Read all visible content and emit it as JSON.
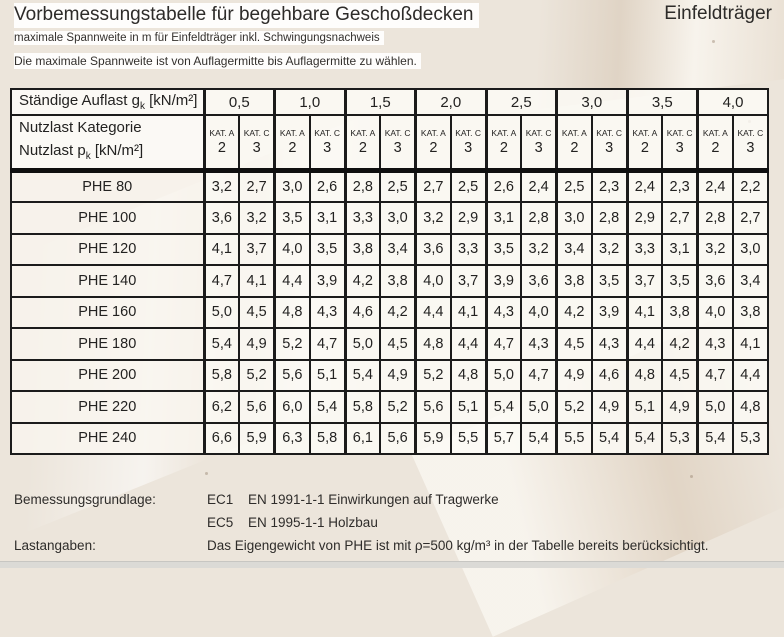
{
  "page": {
    "title": "Vorbemessungstabelle für begehbare Geschoßdecken",
    "title_right": "Einfeldträger",
    "subtitle1": "maximale Spannweite in m für Einfeldträger inkl. Schwingungsnachweis",
    "subtitle2": "Die maximale Spannweite ist von Auflagermitte bis Auflagermitte zu wählen."
  },
  "table": {
    "header": {
      "row1_label_prefix": "Ständige Auflast g",
      "row1_label_sub": "k",
      "row1_label_unit": " [kN/m²]",
      "row2_line1": "Nutzlast Kategorie",
      "row2_line2_prefix": "Nutzlast p",
      "row2_line2_sub": "k",
      "row2_line2_unit": " [kN/m²]"
    },
    "g_values": [
      "0,5",
      "1,0",
      "1,5",
      "2,0",
      "2,5",
      "3,0",
      "3,5",
      "4,0"
    ],
    "kat_labels": [
      "KAT. A",
      "KAT. C"
    ],
    "p_values": [
      "2",
      "3"
    ],
    "rows": [
      {
        "label": "PHE 80",
        "values": [
          "3,2",
          "2,7",
          "3,0",
          "2,6",
          "2,8",
          "2,5",
          "2,7",
          "2,5",
          "2,6",
          "2,4",
          "2,5",
          "2,3",
          "2,4",
          "2,3",
          "2,4",
          "2,2"
        ]
      },
      {
        "label": "PHE 100",
        "values": [
          "3,6",
          "3,2",
          "3,5",
          "3,1",
          "3,3",
          "3,0",
          "3,2",
          "2,9",
          "3,1",
          "2,8",
          "3,0",
          "2,8",
          "2,9",
          "2,7",
          "2,8",
          "2,7"
        ]
      },
      {
        "label": "PHE 120",
        "values": [
          "4,1",
          "3,7",
          "4,0",
          "3,5",
          "3,8",
          "3,4",
          "3,6",
          "3,3",
          "3,5",
          "3,2",
          "3,4",
          "3,2",
          "3,3",
          "3,1",
          "3,2",
          "3,0"
        ]
      },
      {
        "label": "PHE 140",
        "values": [
          "4,7",
          "4,1",
          "4,4",
          "3,9",
          "4,2",
          "3,8",
          "4,0",
          "3,7",
          "3,9",
          "3,6",
          "3,8",
          "3,5",
          "3,7",
          "3,5",
          "3,6",
          "3,4"
        ]
      },
      {
        "label": "PHE 160",
        "values": [
          "5,0",
          "4,5",
          "4,8",
          "4,3",
          "4,6",
          "4,2",
          "4,4",
          "4,1",
          "4,3",
          "4,0",
          "4,2",
          "3,9",
          "4,1",
          "3,8",
          "4,0",
          "3,8"
        ]
      },
      {
        "label": "PHE 180",
        "values": [
          "5,4",
          "4,9",
          "5,2",
          "4,7",
          "5,0",
          "4,5",
          "4,8",
          "4,4",
          "4,7",
          "4,3",
          "4,5",
          "4,3",
          "4,4",
          "4,2",
          "4,3",
          "4,1"
        ]
      },
      {
        "label": "PHE 200",
        "values": [
          "5,8",
          "5,2",
          "5,6",
          "5,1",
          "5,4",
          "4,9",
          "5,2",
          "4,8",
          "5,0",
          "4,7",
          "4,9",
          "4,6",
          "4,8",
          "4,5",
          "4,7",
          "4,4"
        ]
      },
      {
        "label": "PHE 220",
        "values": [
          "6,2",
          "5,6",
          "6,0",
          "5,4",
          "5,8",
          "5,2",
          "5,6",
          "5,1",
          "5,4",
          "5,0",
          "5,2",
          "4,9",
          "5,1",
          "4,9",
          "5,0",
          "4,8"
        ]
      },
      {
        "label": "PHE 240",
        "values": [
          "6,6",
          "5,9",
          "6,3",
          "5,8",
          "6,1",
          "5,6",
          "5,9",
          "5,5",
          "5,7",
          "5,4",
          "5,5",
          "5,4",
          "5,4",
          "5,3",
          "5,4",
          "5,3"
        ]
      }
    ]
  },
  "footer": {
    "basis_label": "Bemessungsgrundlage:",
    "basis1_code": "EC1",
    "basis1_text": "EN 1991-1-1 Einwirkungen auf Tragwerke",
    "basis2_code": "EC5",
    "basis2_text": "EN 1995-1-1 Holzbau",
    "loads_label": "Lastangaben:",
    "loads_text": "Das Eigengewicht von PHE ist mit ρ=500 kg/m³ in der Tabelle bereits berücksichtigt."
  },
  "colors": {
    "background": "#ece5db",
    "table_border": "#1b1b1b",
    "cell_fill": "#fdfbf7",
    "text": "#262423",
    "bottom_strip": "#dbdad6"
  }
}
